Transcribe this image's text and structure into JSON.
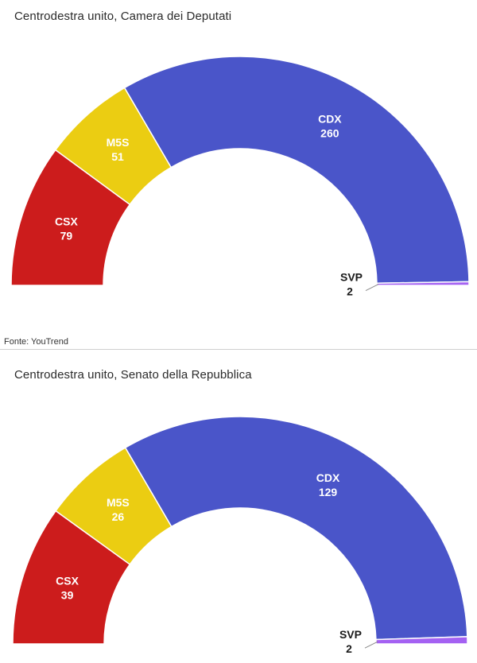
{
  "source": "Fonte: YouTrend",
  "chart_data": [
    {
      "type": "pie",
      "subtype": "semicircle-parliament",
      "title": "Centrodestra unito, Camera dei Deputati",
      "series": [
        {
          "name": "CSX",
          "value": 79,
          "color": "#cc1c1c"
        },
        {
          "name": "M5S",
          "value": 51,
          "color": "#ebcd12"
        },
        {
          "name": "CDX",
          "value": 260,
          "color": "#4a55c9"
        },
        {
          "name": "SVP",
          "value": 2,
          "color": "#a461f2"
        }
      ]
    },
    {
      "type": "pie",
      "subtype": "semicircle-parliament",
      "title": "Centrodestra unito, Senato della Repubblica",
      "series": [
        {
          "name": "CSX",
          "value": 39,
          "color": "#cc1c1c"
        },
        {
          "name": "M5S",
          "value": 26,
          "color": "#ebcd12"
        },
        {
          "name": "CDX",
          "value": 129,
          "color": "#4a55c9"
        },
        {
          "name": "SVP",
          "value": 2,
          "color": "#a461f2"
        }
      ]
    }
  ]
}
